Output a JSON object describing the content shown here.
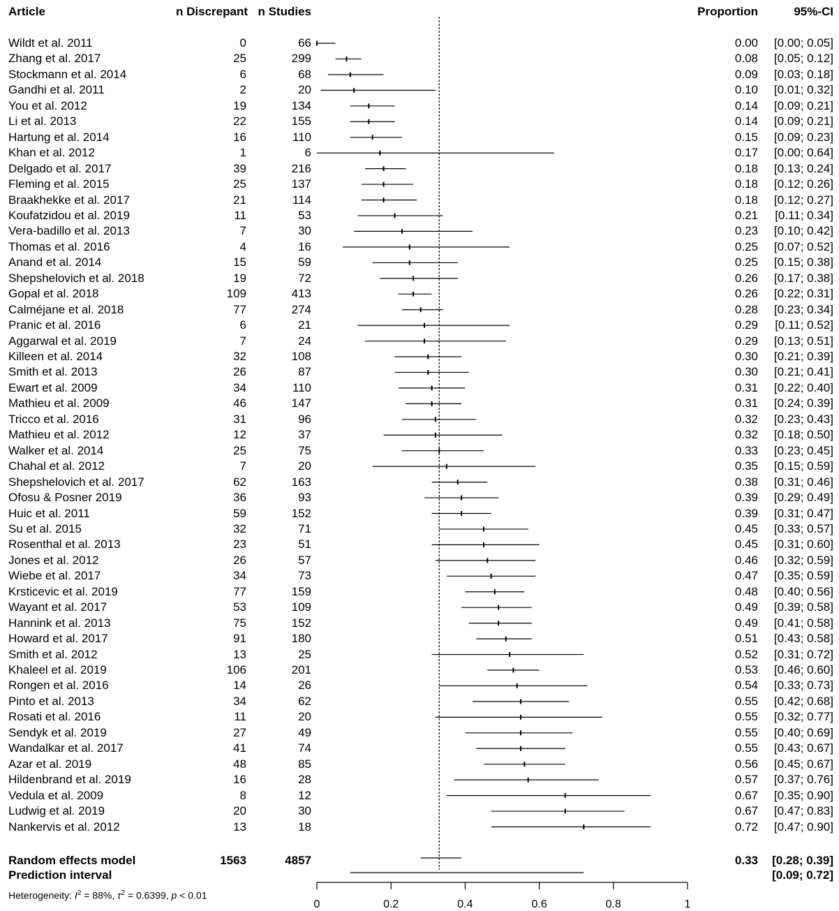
{
  "chart_data": {
    "type": "forest",
    "headers": {
      "article": "Article",
      "n_discrepant": "n Discrepant",
      "n_studies": "n Studies",
      "proportion": "Proportion",
      "ci": "95%-CI"
    },
    "studies": [
      {
        "article": "Wildt et al. 2011",
        "d": "0",
        "n": "66",
        "est": 0.0,
        "lo": 0.0,
        "hi": 0.05,
        "prop": "0.00",
        "ci": "[0.00; 0.05]"
      },
      {
        "article": "Zhang et al. 2017",
        "d": "25",
        "n": "299",
        "est": 0.08,
        "lo": 0.05,
        "hi": 0.12,
        "prop": "0.08",
        "ci": "[0.05; 0.12]"
      },
      {
        "article": "Stockmann et al. 2014",
        "d": "6",
        "n": "68",
        "est": 0.09,
        "lo": 0.03,
        "hi": 0.18,
        "prop": "0.09",
        "ci": "[0.03; 0.18]"
      },
      {
        "article": "Gandhi et al. 2011",
        "d": "2",
        "n": "20",
        "est": 0.1,
        "lo": 0.01,
        "hi": 0.32,
        "prop": "0.10",
        "ci": "[0.01; 0.32]"
      },
      {
        "article": "You et al. 2012",
        "d": "19",
        "n": "134",
        "est": 0.14,
        "lo": 0.09,
        "hi": 0.21,
        "prop": "0.14",
        "ci": "[0.09; 0.21]"
      },
      {
        "article": "Li et al. 2013",
        "d": "22",
        "n": "155",
        "est": 0.14,
        "lo": 0.09,
        "hi": 0.21,
        "prop": "0.14",
        "ci": "[0.09; 0.21]"
      },
      {
        "article": "Hartung et al. 2014",
        "d": "16",
        "n": "110",
        "est": 0.15,
        "lo": 0.09,
        "hi": 0.23,
        "prop": "0.15",
        "ci": "[0.09; 0.23]"
      },
      {
        "article": "Khan et al. 2012",
        "d": "1",
        "n": "6",
        "est": 0.17,
        "lo": 0.0,
        "hi": 0.64,
        "prop": "0.17",
        "ci": "[0.00; 0.64]"
      },
      {
        "article": "Delgado et al. 2017",
        "d": "39",
        "n": "216",
        "est": 0.18,
        "lo": 0.13,
        "hi": 0.24,
        "prop": "0.18",
        "ci": "[0.13; 0.24]"
      },
      {
        "article": "Fleming et al. 2015",
        "d": "25",
        "n": "137",
        "est": 0.18,
        "lo": 0.12,
        "hi": 0.26,
        "prop": "0.18",
        "ci": "[0.12; 0.26]"
      },
      {
        "article": "Braakhekke et al. 2017",
        "d": "21",
        "n": "114",
        "est": 0.18,
        "lo": 0.12,
        "hi": 0.27,
        "prop": "0.18",
        "ci": "[0.12; 0.27]"
      },
      {
        "article": "Koufatzidou et al. 2019",
        "d": "11",
        "n": "53",
        "est": 0.21,
        "lo": 0.11,
        "hi": 0.34,
        "prop": "0.21",
        "ci": "[0.11; 0.34]"
      },
      {
        "article": "Vera-badillo et al. 2013",
        "d": "7",
        "n": "30",
        "est": 0.23,
        "lo": 0.1,
        "hi": 0.42,
        "prop": "0.23",
        "ci": "[0.10; 0.42]"
      },
      {
        "article": "Thomas et al. 2016",
        "d": "4",
        "n": "16",
        "est": 0.25,
        "lo": 0.07,
        "hi": 0.52,
        "prop": "0.25",
        "ci": "[0.07; 0.52]"
      },
      {
        "article": "Anand et al. 2014",
        "d": "15",
        "n": "59",
        "est": 0.25,
        "lo": 0.15,
        "hi": 0.38,
        "prop": "0.25",
        "ci": "[0.15; 0.38]"
      },
      {
        "article": "Shepshelovich et al. 2018",
        "d": "19",
        "n": "72",
        "est": 0.26,
        "lo": 0.17,
        "hi": 0.38,
        "prop": "0.26",
        "ci": "[0.17; 0.38]"
      },
      {
        "article": "Gopal et al. 2018",
        "d": "109",
        "n": "413",
        "est": 0.26,
        "lo": 0.22,
        "hi": 0.31,
        "prop": "0.26",
        "ci": "[0.22; 0.31]"
      },
      {
        "article": "Calméjane et al. 2018",
        "d": "77",
        "n": "274",
        "est": 0.28,
        "lo": 0.23,
        "hi": 0.34,
        "prop": "0.28",
        "ci": "[0.23; 0.34]"
      },
      {
        "article": "Pranic et al. 2016",
        "d": "6",
        "n": "21",
        "est": 0.29,
        "lo": 0.11,
        "hi": 0.52,
        "prop": "0.29",
        "ci": "[0.11; 0.52]"
      },
      {
        "article": "Aggarwal et al. 2019",
        "d": "7",
        "n": "24",
        "est": 0.29,
        "lo": 0.13,
        "hi": 0.51,
        "prop": "0.29",
        "ci": "[0.13; 0.51]"
      },
      {
        "article": "Killeen et al. 2014",
        "d": "32",
        "n": "108",
        "est": 0.3,
        "lo": 0.21,
        "hi": 0.39,
        "prop": "0.30",
        "ci": "[0.21; 0.39]"
      },
      {
        "article": "Smith et al. 2013",
        "d": "26",
        "n": "87",
        "est": 0.3,
        "lo": 0.21,
        "hi": 0.41,
        "prop": "0.30",
        "ci": "[0.21; 0.41]"
      },
      {
        "article": "Ewart et al. 2009",
        "d": "34",
        "n": "110",
        "est": 0.31,
        "lo": 0.22,
        "hi": 0.4,
        "prop": "0.31",
        "ci": "[0.22; 0.40]"
      },
      {
        "article": "Mathieu et al. 2009",
        "d": "46",
        "n": "147",
        "est": 0.31,
        "lo": 0.24,
        "hi": 0.39,
        "prop": "0.31",
        "ci": "[0.24; 0.39]"
      },
      {
        "article": "Tricco et al. 2016",
        "d": "31",
        "n": "96",
        "est": 0.32,
        "lo": 0.23,
        "hi": 0.43,
        "prop": "0.32",
        "ci": "[0.23; 0.43]"
      },
      {
        "article": "Mathieu et al. 2012",
        "d": "12",
        "n": "37",
        "est": 0.32,
        "lo": 0.18,
        "hi": 0.5,
        "prop": "0.32",
        "ci": "[0.18; 0.50]"
      },
      {
        "article": "Walker et al. 2014",
        "d": "25",
        "n": "75",
        "est": 0.33,
        "lo": 0.23,
        "hi": 0.45,
        "prop": "0.33",
        "ci": "[0.23; 0.45]"
      },
      {
        "article": "Chahal et al. 2012",
        "d": "7",
        "n": "20",
        "est": 0.35,
        "lo": 0.15,
        "hi": 0.59,
        "prop": "0.35",
        "ci": "[0.15; 0.59]"
      },
      {
        "article": "Shepshelovich et al. 2017",
        "d": "62",
        "n": "163",
        "est": 0.38,
        "lo": 0.31,
        "hi": 0.46,
        "prop": "0.38",
        "ci": "[0.31; 0.46]"
      },
      {
        "article": "Ofosu & Posner 2019",
        "d": "36",
        "n": "93",
        "est": 0.39,
        "lo": 0.29,
        "hi": 0.49,
        "prop": "0.39",
        "ci": "[0.29; 0.49]"
      },
      {
        "article": "Huic et al. 2011",
        "d": "59",
        "n": "152",
        "est": 0.39,
        "lo": 0.31,
        "hi": 0.47,
        "prop": "0.39",
        "ci": "[0.31; 0.47]"
      },
      {
        "article": "Su et al. 2015",
        "d": "32",
        "n": "71",
        "est": 0.45,
        "lo": 0.33,
        "hi": 0.57,
        "prop": "0.45",
        "ci": "[0.33; 0.57]"
      },
      {
        "article": "Rosenthal et al. 2013",
        "d": "23",
        "n": "51",
        "est": 0.45,
        "lo": 0.31,
        "hi": 0.6,
        "prop": "0.45",
        "ci": "[0.31; 0.60]"
      },
      {
        "article": "Jones et al. 2012",
        "d": "26",
        "n": "57",
        "est": 0.46,
        "lo": 0.32,
        "hi": 0.59,
        "prop": "0.46",
        "ci": "[0.32; 0.59]"
      },
      {
        "article": "Wiebe et al. 2017",
        "d": "34",
        "n": "73",
        "est": 0.47,
        "lo": 0.35,
        "hi": 0.59,
        "prop": "0.47",
        "ci": "[0.35; 0.59]"
      },
      {
        "article": "Krsticevic et al. 2019",
        "d": "77",
        "n": "159",
        "est": 0.48,
        "lo": 0.4,
        "hi": 0.56,
        "prop": "0.48",
        "ci": "[0.40; 0.56]"
      },
      {
        "article": "Wayant et al. 2017",
        "d": "53",
        "n": "109",
        "est": 0.49,
        "lo": 0.39,
        "hi": 0.58,
        "prop": "0.49",
        "ci": "[0.39; 0.58]"
      },
      {
        "article": "Hannink et al. 2013",
        "d": "75",
        "n": "152",
        "est": 0.49,
        "lo": 0.41,
        "hi": 0.58,
        "prop": "0.49",
        "ci": "[0.41; 0.58]"
      },
      {
        "article": "Howard et al. 2017",
        "d": "91",
        "n": "180",
        "est": 0.51,
        "lo": 0.43,
        "hi": 0.58,
        "prop": "0.51",
        "ci": "[0.43; 0.58]"
      },
      {
        "article": "Smith et al. 2012",
        "d": "13",
        "n": "25",
        "est": 0.52,
        "lo": 0.31,
        "hi": 0.72,
        "prop": "0.52",
        "ci": "[0.31; 0.72]"
      },
      {
        "article": "Khaleel et al. 2019",
        "d": "106",
        "n": "201",
        "est": 0.53,
        "lo": 0.46,
        "hi": 0.6,
        "prop": "0.53",
        "ci": "[0.46; 0.60]"
      },
      {
        "article": "Rongen et al. 2016",
        "d": "14",
        "n": "26",
        "est": 0.54,
        "lo": 0.33,
        "hi": 0.73,
        "prop": "0.54",
        "ci": "[0.33; 0.73]"
      },
      {
        "article": "Pinto et al. 2013",
        "d": "34",
        "n": "62",
        "est": 0.55,
        "lo": 0.42,
        "hi": 0.68,
        "prop": "0.55",
        "ci": "[0.42; 0.68]"
      },
      {
        "article": "Rosati et al. 2016",
        "d": "11",
        "n": "20",
        "est": 0.55,
        "lo": 0.32,
        "hi": 0.77,
        "prop": "0.55",
        "ci": "[0.32; 0.77]"
      },
      {
        "article": "Sendyk et al. 2019",
        "d": "27",
        "n": "49",
        "est": 0.55,
        "lo": 0.4,
        "hi": 0.69,
        "prop": "0.55",
        "ci": "[0.40; 0.69]"
      },
      {
        "article": "Wandalkar et al. 2017",
        "d": "41",
        "n": "74",
        "est": 0.55,
        "lo": 0.43,
        "hi": 0.67,
        "prop": "0.55",
        "ci": "[0.43; 0.67]"
      },
      {
        "article": "Azar et al. 2019",
        "d": "48",
        "n": "85",
        "est": 0.56,
        "lo": 0.45,
        "hi": 0.67,
        "prop": "0.56",
        "ci": "[0.45; 0.67]"
      },
      {
        "article": "Hildenbrand et al. 2019",
        "d": "16",
        "n": "28",
        "est": 0.57,
        "lo": 0.37,
        "hi": 0.76,
        "prop": "0.57",
        "ci": "[0.37; 0.76]"
      },
      {
        "article": "Vedula et al. 2009",
        "d": "8",
        "n": "12",
        "est": 0.67,
        "lo": 0.35,
        "hi": 0.9,
        "prop": "0.67",
        "ci": "[0.35; 0.90]"
      },
      {
        "article": "Ludwig et al. 2019",
        "d": "20",
        "n": "30",
        "est": 0.67,
        "lo": 0.47,
        "hi": 0.83,
        "prop": "0.67",
        "ci": "[0.47; 0.83]"
      },
      {
        "article": "Nankervis et al. 2012",
        "d": "13",
        "n": "18",
        "est": 0.72,
        "lo": 0.47,
        "hi": 0.9,
        "prop": "0.72",
        "ci": "[0.47; 0.90]"
      }
    ],
    "summary": {
      "label": "Random effects model",
      "d": "1563",
      "n": "4857",
      "est": 0.33,
      "lo": 0.28,
      "hi": 0.39,
      "prop": "0.33",
      "ci": "[0.28; 0.39]"
    },
    "prediction": {
      "label": "Prediction interval",
      "lo": 0.09,
      "hi": 0.72,
      "ci": "[0.09; 0.72]"
    },
    "heterogeneity": {
      "prefix": "Heterogeneity: ",
      "i2_symbol": "I",
      "i2_value": " = 88%, ",
      "tau2_symbol": "τ",
      "tau2_value": " = 0.6399, ",
      "p_symbol": "p",
      "p_value": " < 0.01"
    },
    "axis": {
      "xlim": [
        0,
        1
      ],
      "ticks": [
        0,
        0.2,
        0.4,
        0.6,
        0.8,
        1
      ],
      "tick_labels": [
        "0",
        "0.2",
        "0.4",
        "0.6",
        "0.8",
        "1"
      ]
    },
    "reference_line": 0.33,
    "colors": {
      "ink": "#000000"
    }
  }
}
